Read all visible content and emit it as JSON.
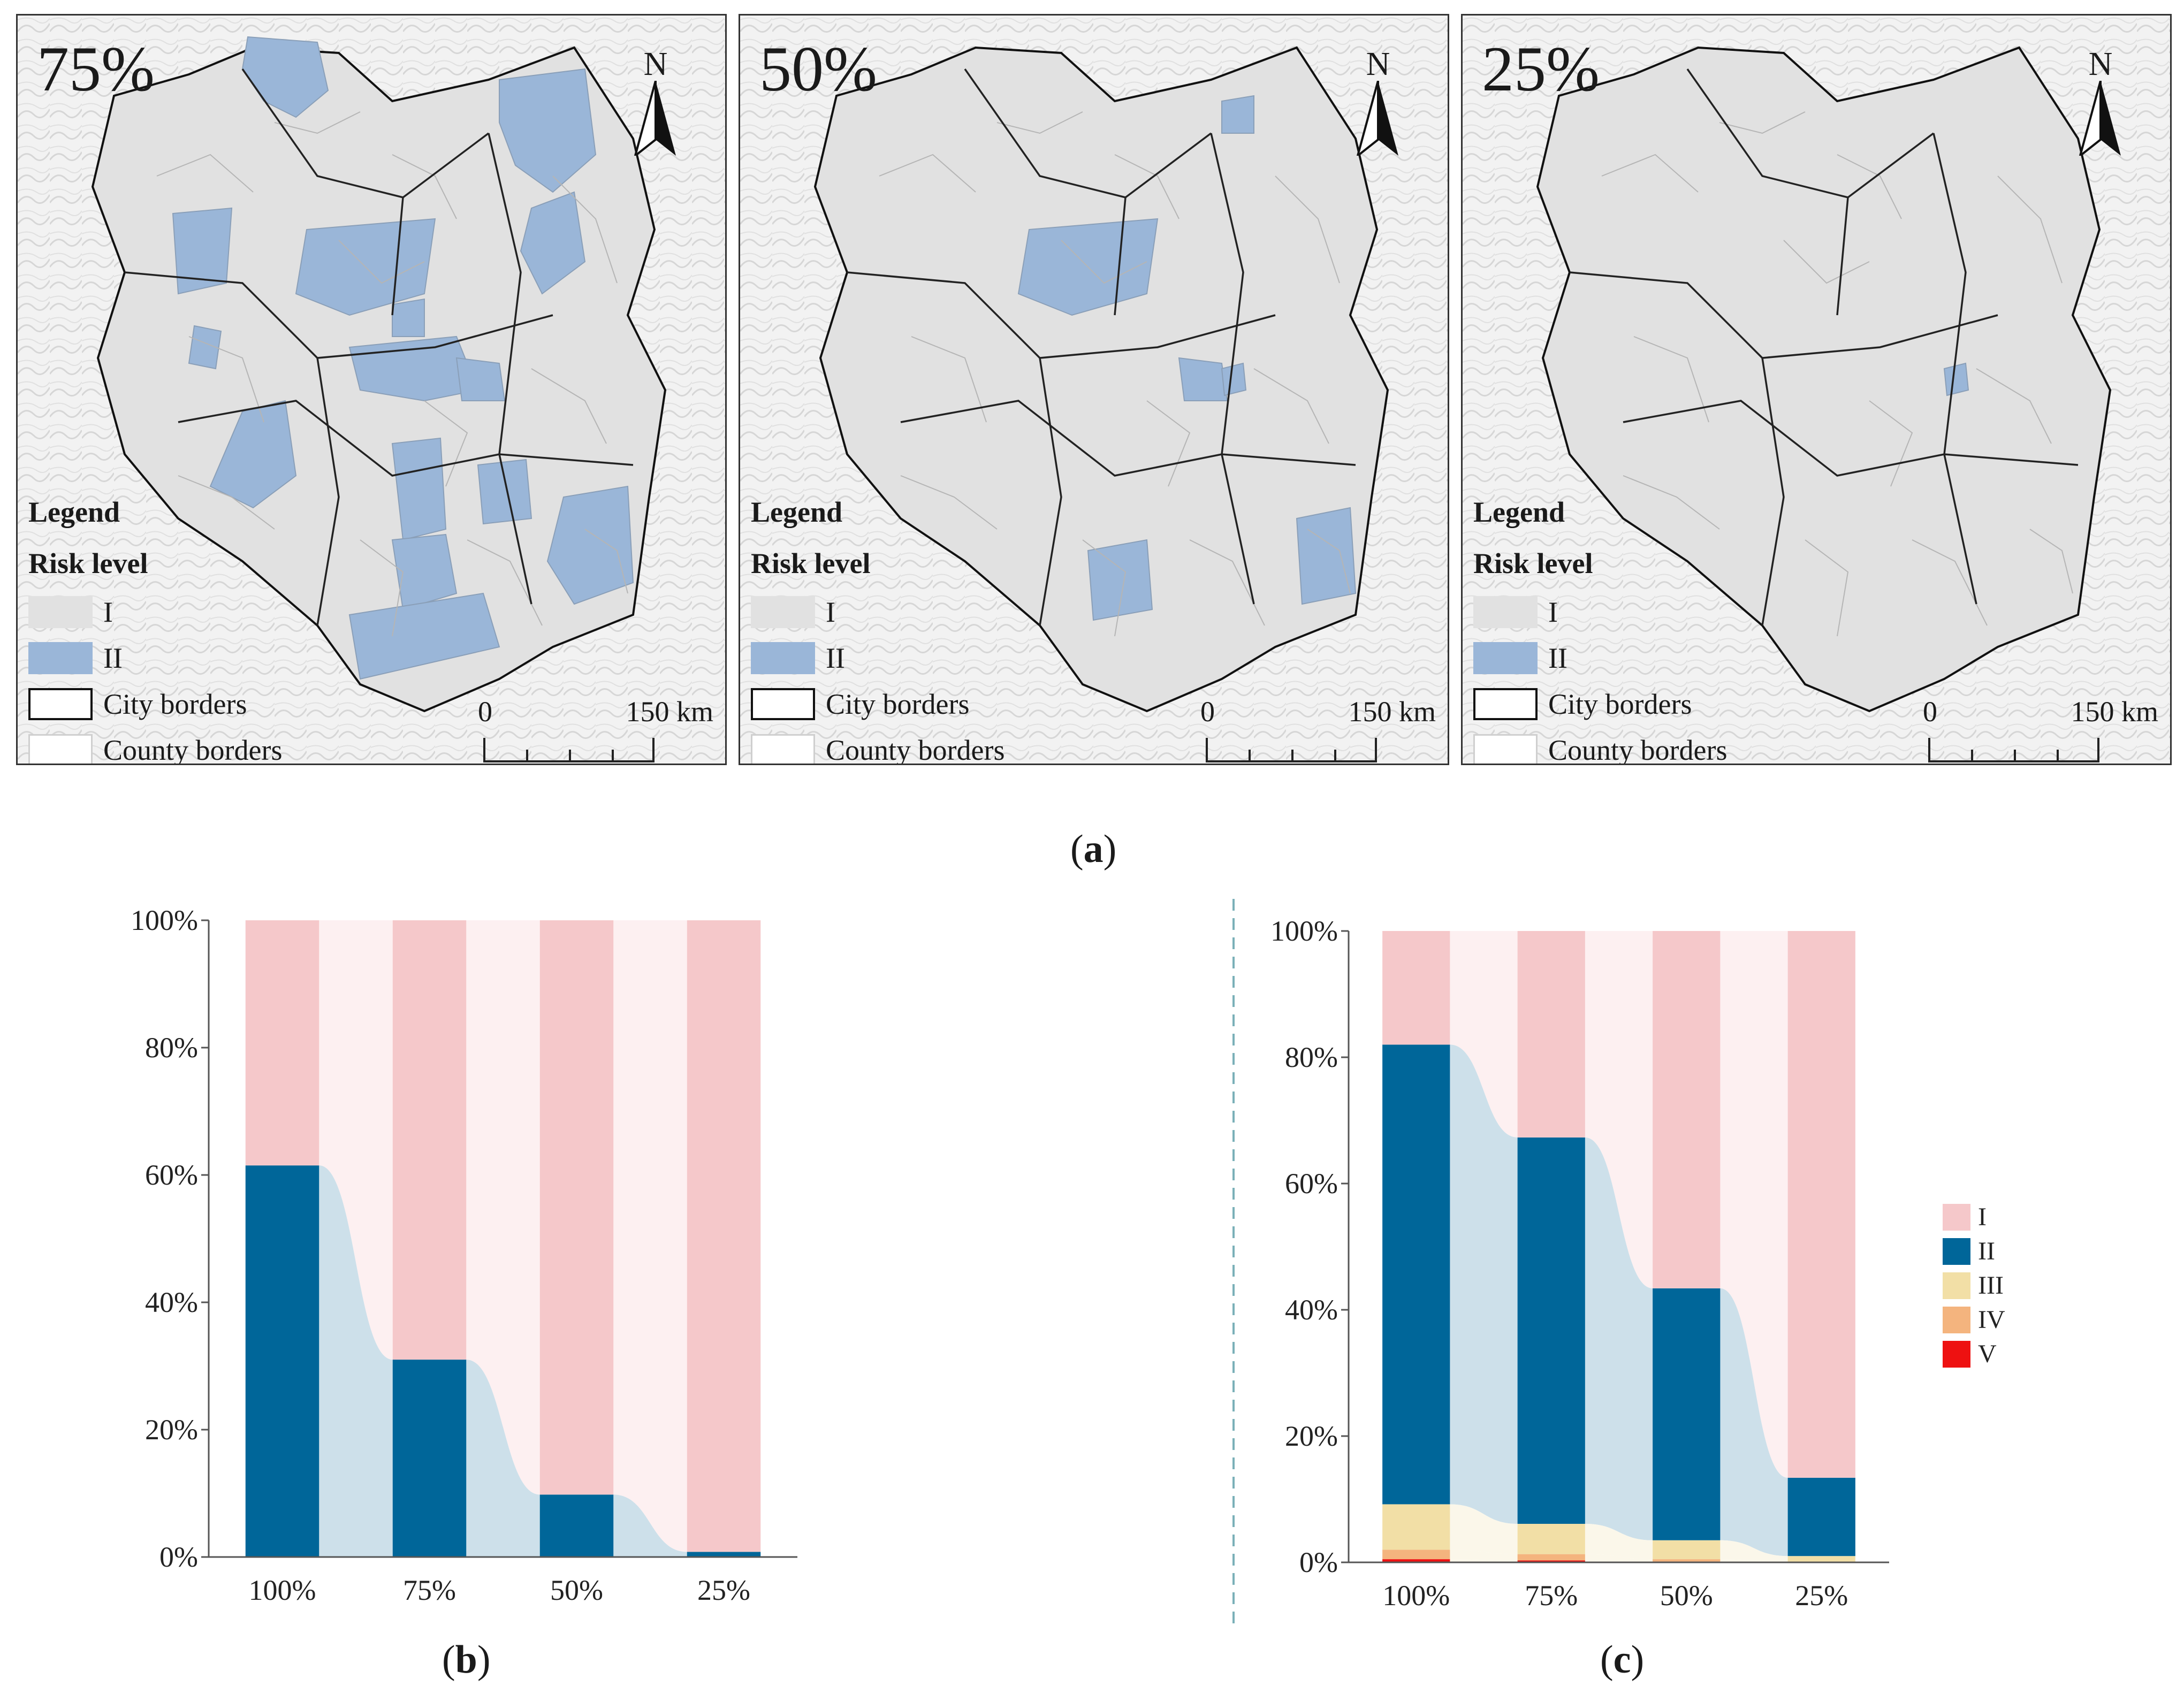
{
  "maps": [
    {
      "label": "75%",
      "highlighted": [
        "r1",
        "r2",
        "r3",
        "r4",
        "r5",
        "r6",
        "r7",
        "r8",
        "r9",
        "r10",
        "r11",
        "r12",
        "r13",
        "r14",
        "r15"
      ]
    },
    {
      "label": "50%",
      "highlighted": [
        "r3",
        "r9",
        "r16",
        "r17",
        "r18",
        "r19"
      ]
    },
    {
      "label": "25%",
      "highlighted": [
        "r18"
      ]
    }
  ],
  "legend": {
    "title": "Legend",
    "subtitle": "Risk level",
    "items": [
      {
        "label": "I",
        "color": "#e1e1e1"
      },
      {
        "label": "II",
        "color": "#9ab6d8"
      },
      {
        "label": "City borders",
        "color": "#ffffff"
      },
      {
        "label": "County borders",
        "color": "#ffffff"
      }
    ]
  },
  "north_label": "N",
  "scale": {
    "zero": "0",
    "distance": "150 km"
  },
  "captions": {
    "a": "a",
    "b": "b",
    "c": "c"
  },
  "colors": {
    "I": "#f5c8ca",
    "II": "#006699",
    "III": "#f2dfa6",
    "IV": "#f4b47e",
    "V": "#ee1111",
    "gap_II": "#cde0ea",
    "gap_I": "#fdf0f1",
    "gap_III": "#fbf7ea",
    "map_fill": "#e1e1e1",
    "map_highlight": "#9ab6d8"
  },
  "chart_data": [
    {
      "id": "b",
      "type": "bar",
      "stacked": true,
      "categories": [
        "100%",
        "75%",
        "50%",
        "25%"
      ],
      "series": [
        {
          "name": "II",
          "values": [
            61.5,
            31,
            9.8,
            0.8
          ]
        },
        {
          "name": "I",
          "values": [
            38.5,
            69,
            90.2,
            99.2
          ]
        }
      ],
      "yticks": [
        "0%",
        "20%",
        "40%",
        "60%",
        "80%",
        "100%"
      ],
      "ylim": [
        0,
        100
      ]
    },
    {
      "id": "c",
      "type": "bar",
      "stacked": true,
      "categories": [
        "100%",
        "75%",
        "50%",
        "25%"
      ],
      "series": [
        {
          "name": "V",
          "values": [
            0.5,
            0.3,
            0.1,
            0
          ]
        },
        {
          "name": "IV",
          "values": [
            1.5,
            1,
            0.4,
            0.1
          ]
        },
        {
          "name": "III",
          "values": [
            7.2,
            4.8,
            3,
            0.9
          ]
        },
        {
          "name": "II",
          "values": [
            72.8,
            61.2,
            39.9,
            12.4
          ]
        },
        {
          "name": "I",
          "values": [
            18,
            32.7,
            56.6,
            86.6
          ]
        }
      ],
      "yticks": [
        "0%",
        "20%",
        "40%",
        "60%",
        "80%",
        "100%"
      ],
      "ylim": [
        0,
        100
      ],
      "legend": [
        "I",
        "II",
        "III",
        "IV",
        "V"
      ]
    }
  ]
}
